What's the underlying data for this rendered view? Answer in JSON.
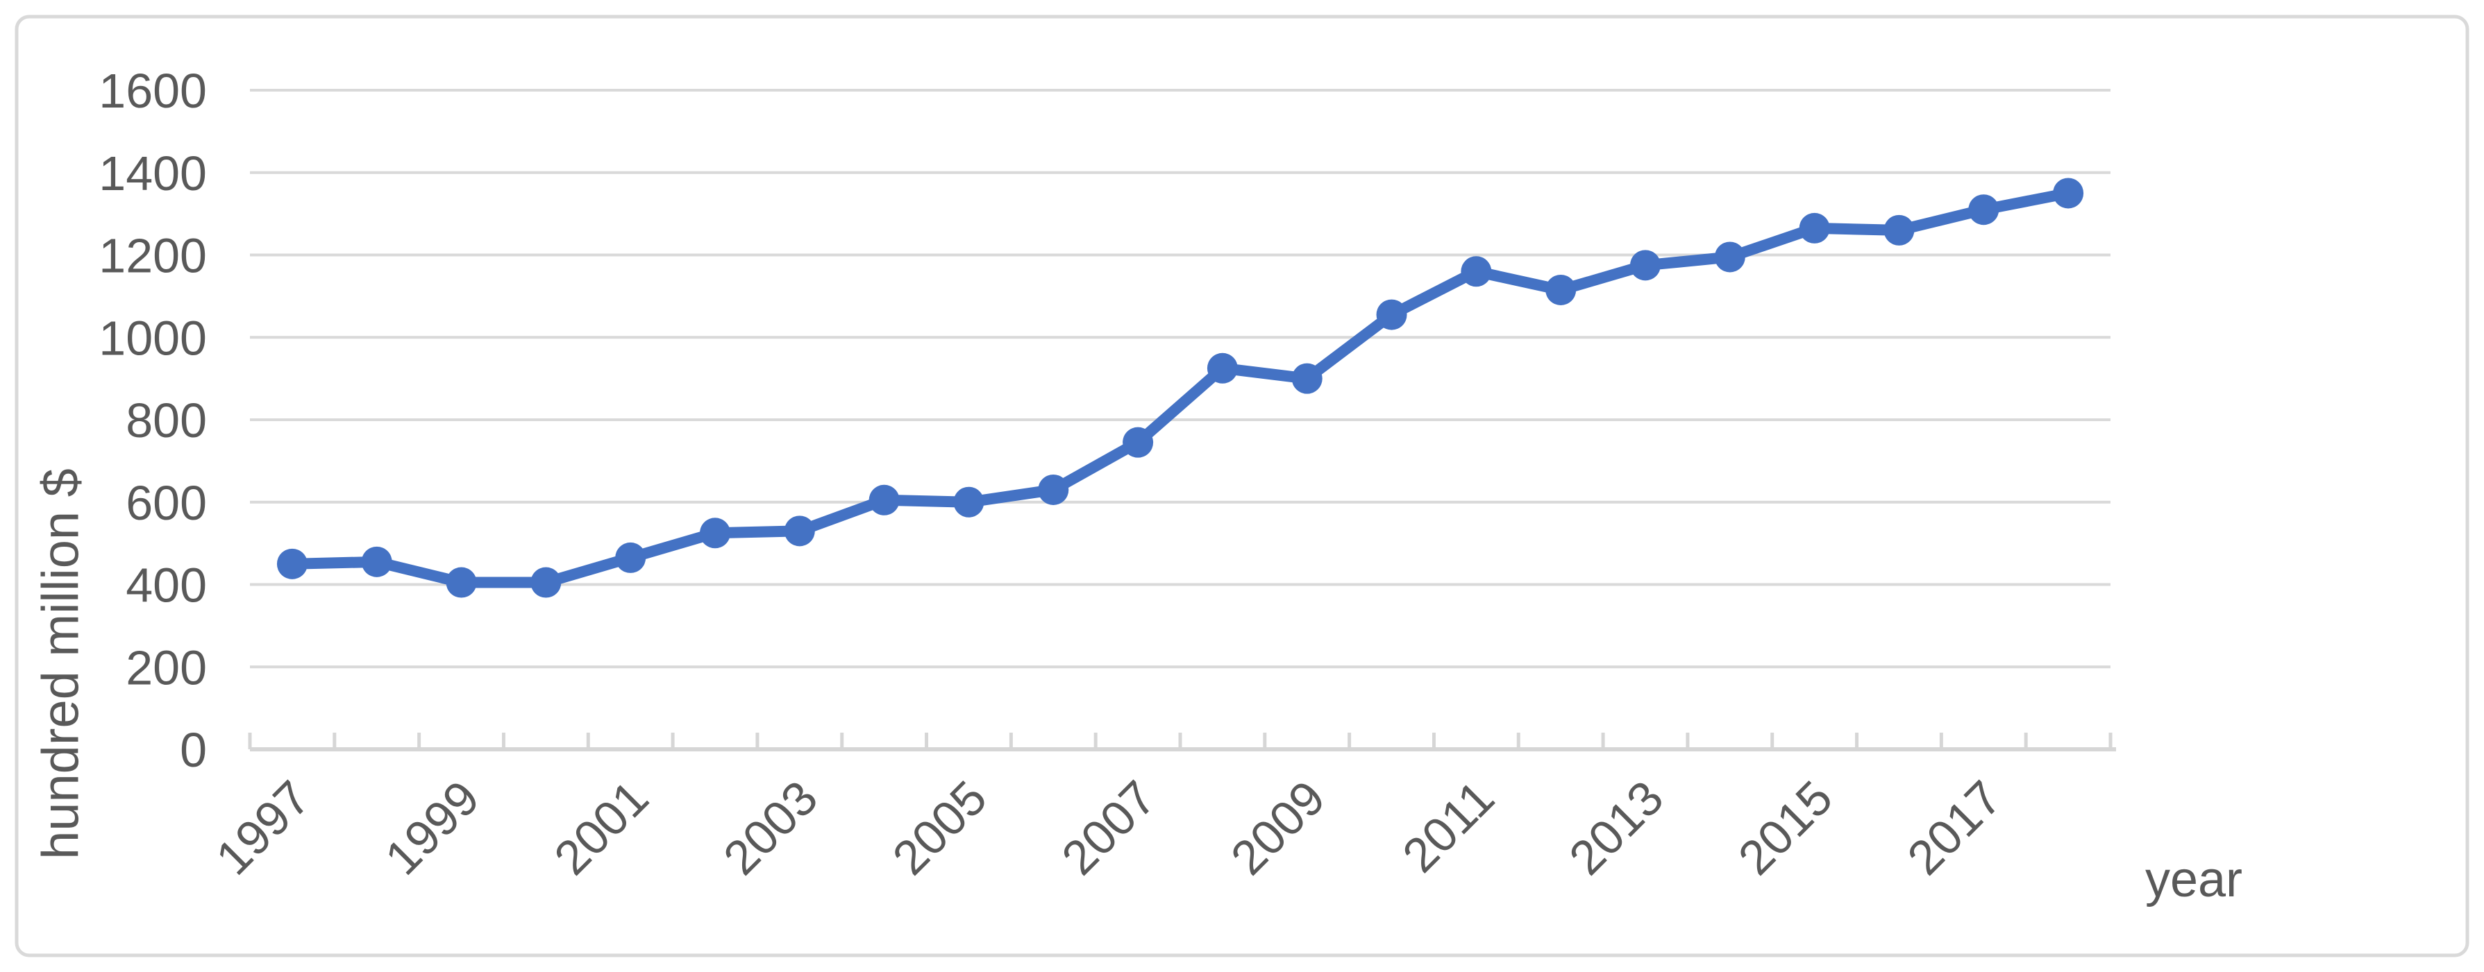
{
  "chart_data": {
    "type": "line",
    "title": "",
    "categories": [
      "1997",
      "1998",
      "1999",
      "2000",
      "2001",
      "2002",
      "2003",
      "2004",
      "2005",
      "2006",
      "2007",
      "2008",
      "2009",
      "2010",
      "2011",
      "2012",
      "2013",
      "2014",
      "2015",
      "2016",
      "2017",
      "2018"
    ],
    "values": [
      450,
      455,
      405,
      405,
      465,
      525,
      530,
      605,
      600,
      630,
      745,
      925,
      900,
      1055,
      1160,
      1115,
      1175,
      1195,
      1265,
      1260,
      1310,
      1350
    ],
    "series_name": "",
    "xlabel": "year",
    "ylabel": "hundred million $",
    "ylim": [
      0,
      1600
    ],
    "ytick_step": 200,
    "ytick_labels": [
      "0",
      "200",
      "400",
      "600",
      "800",
      "1000",
      "1200",
      "1400",
      "1600"
    ],
    "xtick_labels_shown": [
      "1997",
      "1999",
      "2001",
      "2003",
      "2005",
      "2007",
      "2009",
      "2011",
      "2013",
      "2015",
      "2017"
    ],
    "xtick_label_every": 2,
    "xtick_rotation_deg": -45,
    "grid": "horizontal",
    "legend": "none",
    "marker": "circle",
    "colors": {
      "series": "#4472C4",
      "gridline": "#D9D9D9",
      "axis_line": "#D6D6D6",
      "text": "#595959",
      "border": "#D9D9D9",
      "background": "#FFFFFF"
    }
  }
}
